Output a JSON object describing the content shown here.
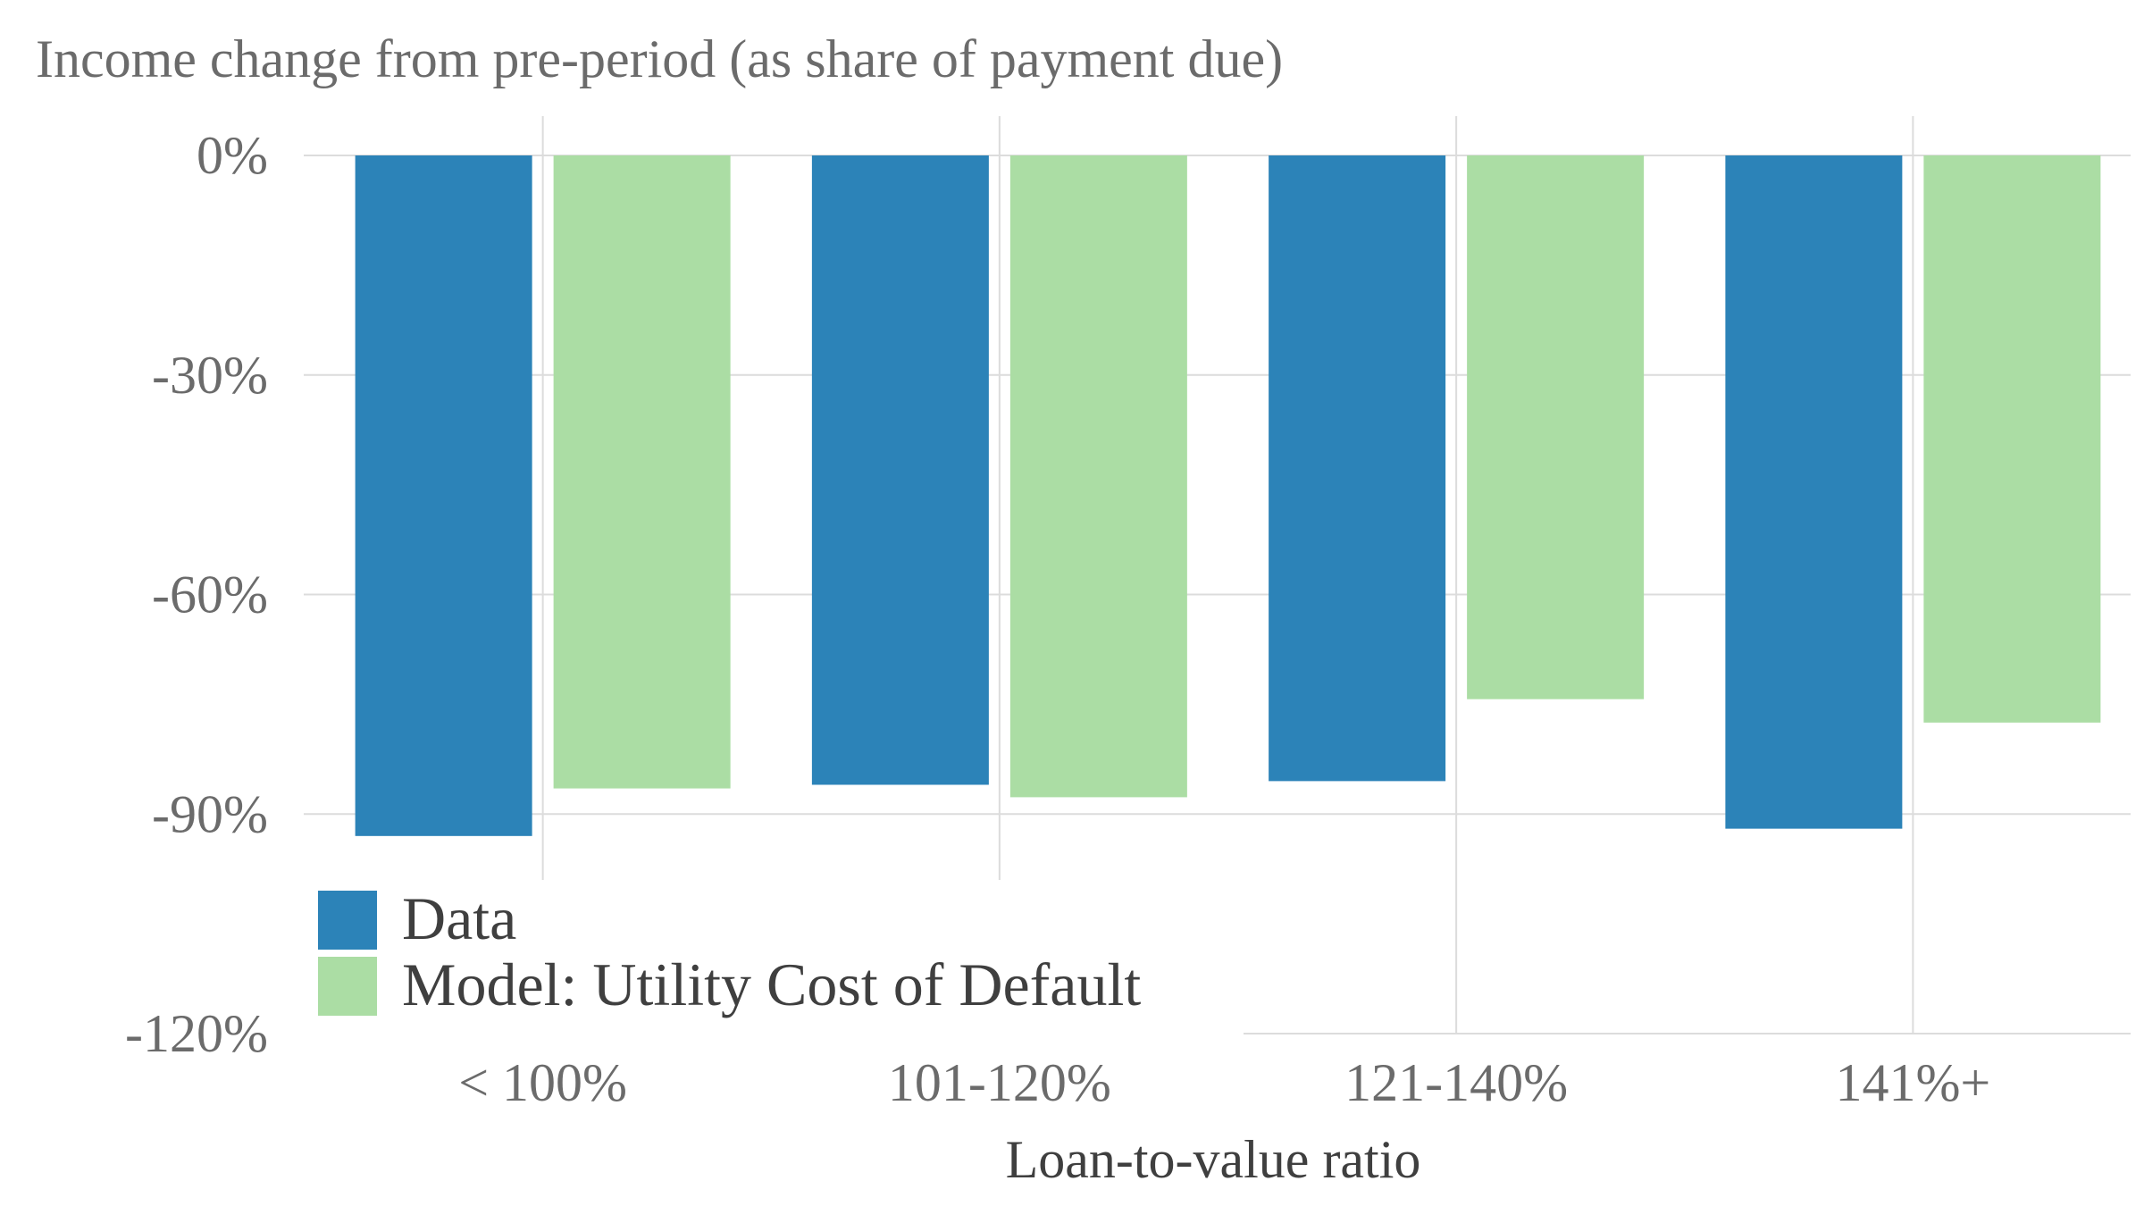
{
  "chart_data": {
    "type": "bar",
    "title": "Income change from pre-period (as share of payment due)",
    "xlabel": "Loan-to-value ratio",
    "ylabel": "",
    "categories": [
      "< 100%",
      "101-120%",
      "121-140%",
      "141%+"
    ],
    "series": [
      {
        "name": "Data",
        "color": "#2c83b8",
        "values": [
          -93,
          -86,
          -85.5,
          -92
        ]
      },
      {
        "name": "Model: Utility Cost of Default",
        "color": "#abdda4",
        "values": [
          -86.5,
          -87.7,
          -74.3,
          -77.5
        ]
      }
    ],
    "ylim": [
      -120,
      0
    ],
    "yticks": [
      0,
      -30,
      -60,
      -90,
      -120
    ],
    "ytick_labels": [
      "0%",
      "-30%",
      "-60%",
      "-90%",
      "-120%"
    ],
    "grid": true,
    "legend_position": "bottom-left"
  }
}
